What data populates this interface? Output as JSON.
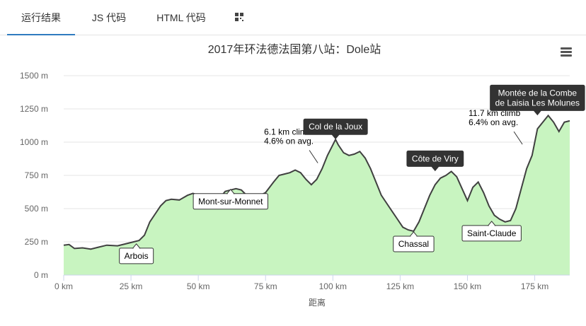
{
  "tabs": [
    {
      "label": "运行结果",
      "active": true
    },
    {
      "label": "JS 代码",
      "active": false
    },
    {
      "label": "HTML 代码",
      "active": false
    }
  ],
  "qr_icon": "qr-code-icon",
  "menu_icon": "hamburger-menu-icon",
  "colors": {
    "accent": "#2f7bbf",
    "area_fill": "#c8f4c0",
    "line": "#404040",
    "label_dark": "#333333"
  },
  "chart_data": {
    "type": "area",
    "title": "2017年环法德法国第八站：Dole站",
    "xlabel": "距离",
    "ylabel": "",
    "xlim": [
      0,
      188
    ],
    "ylim": [
      0,
      1500
    ],
    "x_ticks": [
      0,
      25,
      50,
      75,
      100,
      125,
      150,
      175
    ],
    "x_tick_labels": [
      "0 km",
      "25 km",
      "50 km",
      "75 km",
      "100 km",
      "125 km",
      "150 km",
      "175 km"
    ],
    "y_ticks": [
      0,
      250,
      500,
      750,
      1000,
      1250,
      1500
    ],
    "y_tick_labels": [
      "0 m",
      "250 m",
      "500 m",
      "750 m",
      "1000 m",
      "1250 m",
      "1500 m"
    ],
    "grid": true,
    "series": [
      {
        "x": [
          0,
          2,
          4,
          7,
          10,
          13,
          16,
          20,
          24,
          28,
          30,
          32,
          34,
          36,
          38,
          40,
          43,
          46,
          48,
          50,
          52,
          54,
          56,
          58,
          60,
          62,
          64,
          66,
          68,
          70,
          72,
          75,
          78,
          80,
          82,
          84,
          86,
          88,
          90,
          92,
          94,
          96,
          98,
          100,
          101,
          102,
          104,
          106,
          108,
          110,
          112,
          114,
          116,
          118,
          120,
          122,
          124,
          126,
          128,
          130,
          132,
          134,
          136,
          138,
          140,
          142,
          144,
          146,
          148,
          150,
          152,
          154,
          156,
          158,
          160,
          162,
          164,
          166,
          168,
          170,
          172,
          174,
          176,
          178,
          180,
          182,
          184,
          186,
          188
        ],
        "y": [
          225,
          230,
          200,
          205,
          195,
          210,
          225,
          220,
          240,
          260,
          300,
          400,
          460,
          520,
          560,
          570,
          565,
          600,
          615,
          600,
          580,
          550,
          540,
          580,
          630,
          640,
          650,
          640,
          600,
          570,
          590,
          620,
          700,
          750,
          760,
          770,
          790,
          770,
          720,
          680,
          720,
          800,
          900,
          980,
          1020,
          980,
          920,
          900,
          910,
          930,
          880,
          800,
          700,
          600,
          540,
          480,
          420,
          360,
          340,
          330,
          400,
          500,
          600,
          680,
          730,
          750,
          780,
          740,
          650,
          560,
          660,
          700,
          620,
          520,
          450,
          420,
          400,
          410,
          500,
          650,
          800,
          900,
          1100,
          1150,
          1200,
          1150,
          1080,
          1150,
          1160
        ]
      }
    ],
    "annotations": [
      {
        "text": "Arbois",
        "x": 27,
        "y": 240,
        "style": "light"
      },
      {
        "text": "Mont-sur-Monnet",
        "x": 62,
        "y": 650,
        "style": "light"
      },
      {
        "text": "Col de la Joux",
        "x": 101,
        "y": 1020,
        "style": "dark"
      },
      {
        "text": "Chassal",
        "x": 130,
        "y": 330,
        "style": "light"
      },
      {
        "text": "Côte de Viry",
        "x": 138,
        "y": 780,
        "style": "dark"
      },
      {
        "text": "Saint-Claude",
        "x": 159,
        "y": 410,
        "style": "light"
      },
      {
        "text": "Montée de la Combe\nde Laisia Les Molunes",
        "x": 176,
        "y": 1200,
        "style": "dark"
      }
    ],
    "notes": [
      {
        "text": "6.1 km climb\n4.6% on avg.",
        "x": 96,
        "y": 790
      },
      {
        "text": "11.7 km climb\n6.4% on avg.",
        "x": 172,
        "y": 930
      }
    ]
  }
}
